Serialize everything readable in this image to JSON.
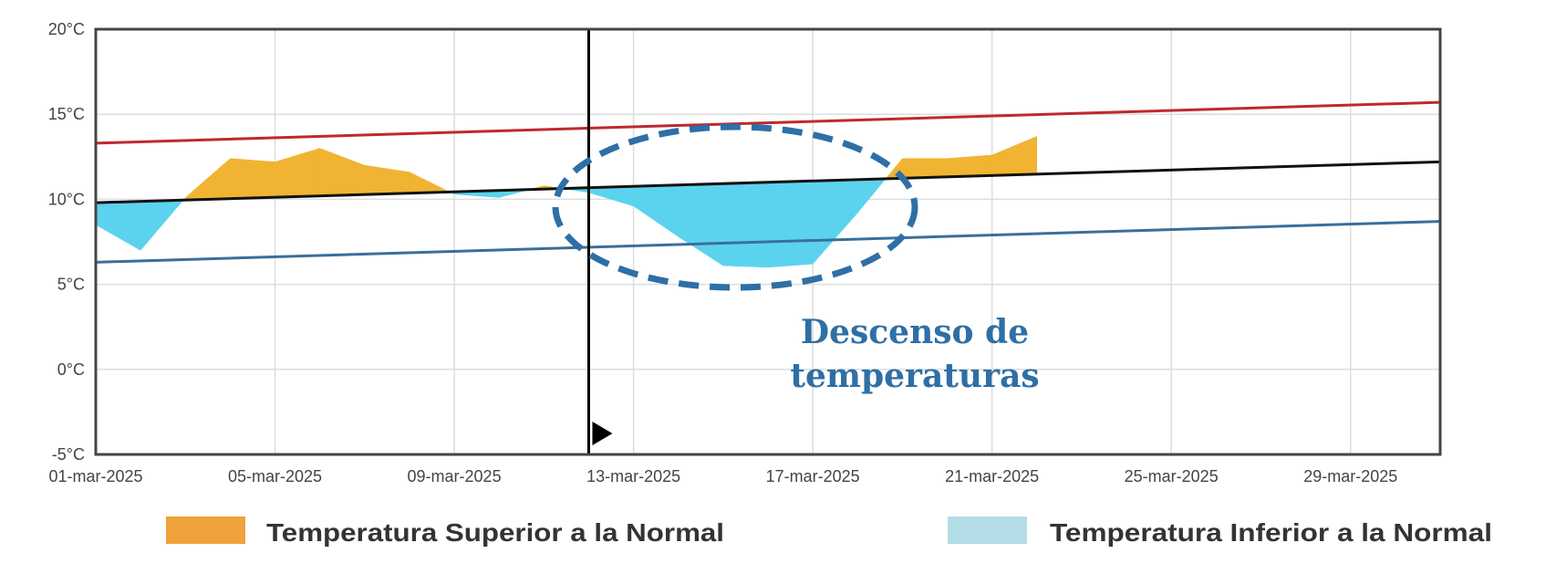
{
  "chart_data": {
    "type": "area",
    "x_unit": "day of March 2025",
    "xlim": [
      1,
      31
    ],
    "ylim": [
      -5,
      20
    ],
    "grid": true,
    "y_ticks": [
      "20°C",
      "15°C",
      "10°C",
      "5°C",
      "0°C",
      "-5°C"
    ],
    "y_tick_values": [
      20,
      15,
      10,
      5,
      0,
      -5
    ],
    "x_ticks": [
      "01-mar-2025",
      "05-mar-2025",
      "09-mar-2025",
      "13-mar-2025",
      "17-mar-2025",
      "21-mar-2025",
      "25-mar-2025",
      "29-mar-2025"
    ],
    "x_tick_values": [
      1,
      5,
      9,
      13,
      17,
      21,
      25,
      29
    ],
    "reference_lines": [
      {
        "color": "#c0292b",
        "x": [
          1,
          31
        ],
        "y": [
          13.3,
          15.7
        ]
      },
      {
        "color": "#111111",
        "x": [
          1,
          31
        ],
        "y": [
          9.8,
          12.2
        ]
      },
      {
        "color": "#3a6f9a",
        "x": [
          1,
          31
        ],
        "y": [
          6.3,
          8.7
        ]
      }
    ],
    "temperature": {
      "x": [
        1,
        2,
        3,
        4,
        5,
        6,
        7,
        8,
        9,
        10,
        11,
        12,
        13,
        14,
        15,
        16,
        17,
        18,
        19,
        20,
        21,
        22
      ],
      "y": [
        8.5,
        7.0,
        10.1,
        12.4,
        12.2,
        13.0,
        12.0,
        11.6,
        10.3,
        10.1,
        10.8,
        10.4,
        9.6,
        7.8,
        6.1,
        6.0,
        6.2,
        9.2,
        12.4,
        12.4,
        12.6,
        13.7
      ]
    },
    "current_day_marker": 12,
    "colors": {
      "above": "#f0b432",
      "below": "#5bd3ee",
      "legend_above": "#f0a23c",
      "legend_below": "#b3dde6"
    },
    "legend": [
      {
        "label": "Temperatura Superior a la Normal",
        "color": "#f0a23c"
      },
      {
        "label": "Temperatura Inferior a la Normal",
        "color": "#b3dde6"
      }
    ],
    "annotation": {
      "lines": [
        "Descenso de",
        "temperaturas"
      ],
      "color": "#2e6fa6"
    }
  }
}
